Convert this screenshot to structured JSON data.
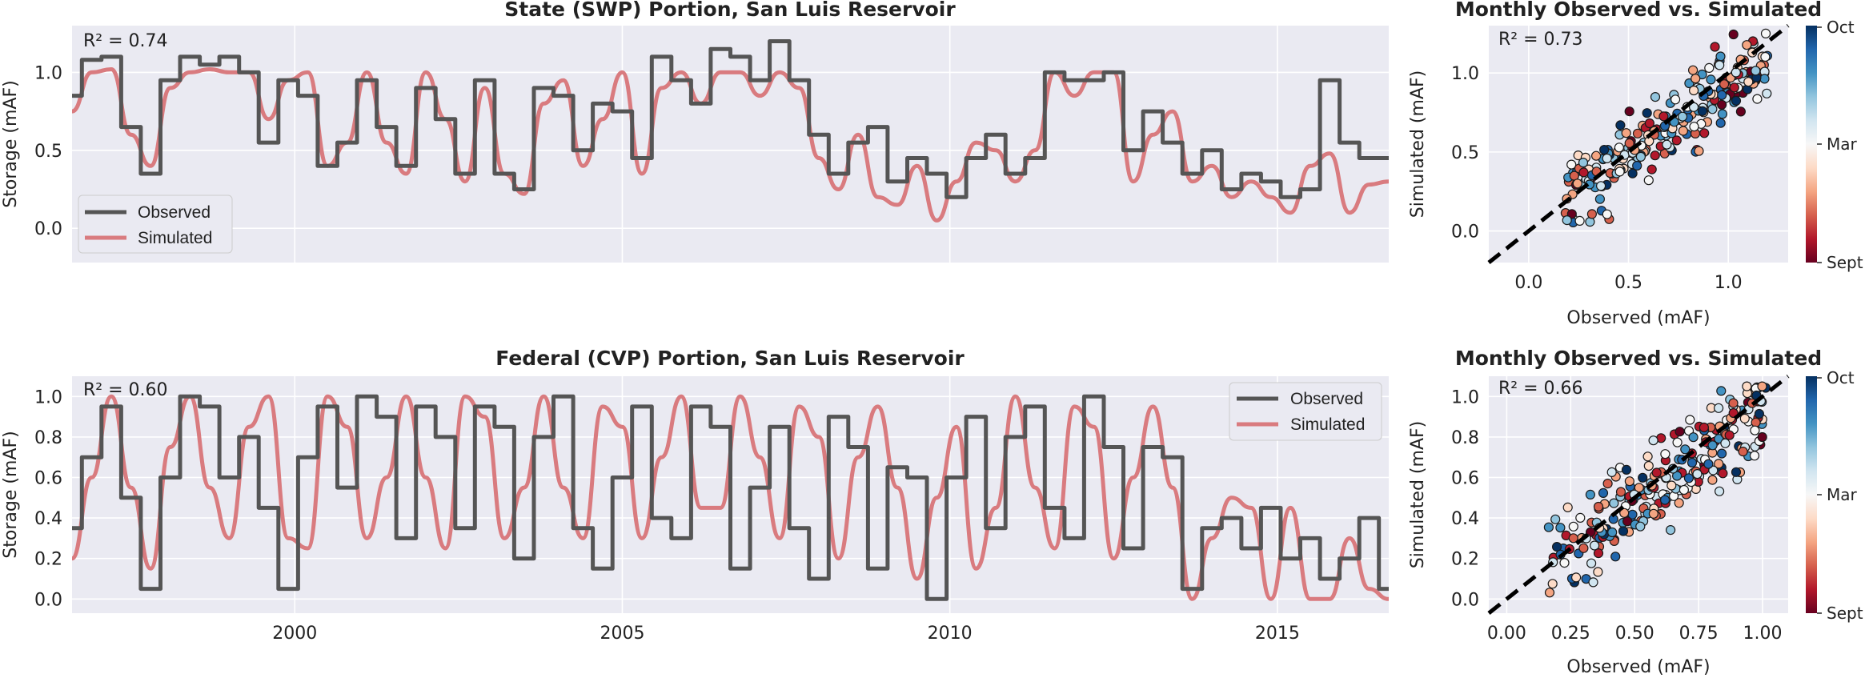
{
  "colors": {
    "background": "#eaeaf2",
    "grid": "#ffffff",
    "observed": "#555555",
    "simulated": "#d97b7f",
    "diagonal": "#000000"
  },
  "legend": {
    "observed": "Observed",
    "simulated": "Simulated"
  },
  "chart_data": [
    {
      "id": "swp_ts",
      "type": "line",
      "title": "State (SWP) Portion, San Luis Reservoir",
      "ylabel": "Storage (mAF)",
      "xlabel": "",
      "annotation": "R² = 0.74",
      "xlim": [
        1996.6,
        2016.7
      ],
      "ylim": [
        -0.22,
        1.3
      ],
      "yticks": [
        0.0,
        0.5,
        1.0
      ],
      "xticks": [
        2000,
        2005,
        2010,
        2015
      ],
      "show_xticklabels": false,
      "legend_position": "lower-left",
      "x": [
        1996.6,
        1996.9,
        1997.2,
        1997.5,
        1997.8,
        1998.1,
        1998.4,
        1998.7,
        1999.0,
        1999.3,
        1999.6,
        1999.9,
        2000.2,
        2000.5,
        2000.8,
        2001.1,
        2001.4,
        2001.7,
        2002.0,
        2002.3,
        2002.6,
        2002.9,
        2003.2,
        2003.5,
        2003.8,
        2004.1,
        2004.4,
        2004.7,
        2005.0,
        2005.3,
        2005.6,
        2005.9,
        2006.2,
        2006.5,
        2006.8,
        2007.1,
        2007.4,
        2007.7,
        2008.0,
        2008.3,
        2008.6,
        2008.9,
        2009.2,
        2009.5,
        2009.8,
        2010.1,
        2010.4,
        2010.7,
        2011.0,
        2011.3,
        2011.6,
        2011.9,
        2012.2,
        2012.5,
        2012.8,
        2013.1,
        2013.4,
        2013.7,
        2014.0,
        2014.3,
        2014.6,
        2014.9,
        2015.2,
        2015.5,
        2015.8,
        2016.1,
        2016.4,
        2016.7
      ],
      "series": [
        {
          "name": "Observed",
          "values": [
            0.85,
            1.08,
            1.1,
            0.65,
            0.35,
            0.95,
            1.1,
            1.05,
            1.1,
            1.0,
            0.55,
            0.95,
            0.85,
            0.4,
            0.55,
            0.95,
            0.65,
            0.4,
            0.9,
            0.7,
            0.35,
            0.95,
            0.35,
            0.25,
            0.9,
            0.85,
            0.5,
            0.8,
            0.75,
            0.45,
            1.1,
            0.95,
            0.8,
            1.15,
            1.1,
            0.95,
            1.2,
            0.95,
            0.6,
            0.35,
            0.55,
            0.65,
            0.3,
            0.45,
            0.35,
            0.2,
            0.45,
            0.6,
            0.35,
            0.45,
            1.0,
            0.95,
            0.95,
            1.0,
            0.5,
            0.75,
            0.55,
            0.35,
            0.5,
            0.25,
            0.35,
            0.3,
            0.2,
            0.25,
            0.95,
            0.55,
            0.45,
            0.45
          ]
        },
        {
          "name": "Simulated",
          "values": [
            0.75,
            1.0,
            1.02,
            0.6,
            0.4,
            0.9,
            1.0,
            1.02,
            1.0,
            1.0,
            0.7,
            0.95,
            1.0,
            0.4,
            0.55,
            1.0,
            0.55,
            0.35,
            1.0,
            0.7,
            0.3,
            0.9,
            0.35,
            0.22,
            0.8,
            0.95,
            0.4,
            0.7,
            1.0,
            0.35,
            0.9,
            1.0,
            0.8,
            1.0,
            1.0,
            0.85,
            1.0,
            0.9,
            0.45,
            0.25,
            0.6,
            0.2,
            0.15,
            0.4,
            0.05,
            0.3,
            0.55,
            0.5,
            0.3,
            0.5,
            1.0,
            0.85,
            1.0,
            1.0,
            0.3,
            0.6,
            0.75,
            0.3,
            0.4,
            0.2,
            0.3,
            0.2,
            0.1,
            0.4,
            0.48,
            0.1,
            0.28,
            0.3
          ]
        }
      ]
    },
    {
      "id": "cvp_ts",
      "type": "line",
      "title": "Federal (CVP) Portion, San Luis Reservoir",
      "ylabel": "Storage (mAF)",
      "xlabel": "",
      "annotation": "R² = 0.60",
      "xlim": [
        1996.6,
        2016.7
      ],
      "ylim": [
        -0.07,
        1.1
      ],
      "yticks": [
        0.0,
        0.2,
        0.4,
        0.6,
        0.8,
        1.0
      ],
      "xticks": [
        2000,
        2005,
        2010,
        2015
      ],
      "show_xticklabels": true,
      "legend_position": "upper-right",
      "x": [
        1996.6,
        1996.9,
        1997.2,
        1997.5,
        1997.8,
        1998.1,
        1998.4,
        1998.7,
        1999.0,
        1999.3,
        1999.6,
        1999.9,
        2000.2,
        2000.5,
        2000.8,
        2001.1,
        2001.4,
        2001.7,
        2002.0,
        2002.3,
        2002.6,
        2002.9,
        2003.2,
        2003.5,
        2003.8,
        2004.1,
        2004.4,
        2004.7,
        2005.0,
        2005.3,
        2005.6,
        2005.9,
        2006.2,
        2006.5,
        2006.8,
        2007.1,
        2007.4,
        2007.7,
        2008.0,
        2008.3,
        2008.6,
        2008.9,
        2009.2,
        2009.5,
        2009.8,
        2010.1,
        2010.4,
        2010.7,
        2011.0,
        2011.3,
        2011.6,
        2011.9,
        2012.2,
        2012.5,
        2012.8,
        2013.1,
        2013.4,
        2013.7,
        2014.0,
        2014.3,
        2014.6,
        2014.9,
        2015.2,
        2015.5,
        2015.8,
        2016.1,
        2016.4,
        2016.7
      ],
      "series": [
        {
          "name": "Observed",
          "values": [
            0.35,
            0.7,
            0.95,
            0.5,
            0.05,
            0.6,
            1.0,
            0.95,
            0.6,
            0.8,
            0.45,
            0.05,
            0.7,
            0.95,
            0.55,
            1.0,
            0.9,
            0.3,
            0.95,
            0.8,
            0.35,
            0.95,
            0.85,
            0.2,
            0.8,
            1.0,
            0.35,
            0.15,
            0.6,
            0.95,
            0.4,
            0.3,
            0.95,
            0.85,
            0.15,
            0.55,
            0.85,
            0.35,
            0.1,
            0.9,
            0.75,
            0.15,
            0.65,
            0.6,
            0.0,
            0.6,
            0.9,
            0.35,
            0.8,
            0.95,
            0.45,
            0.3,
            1.0,
            0.75,
            0.25,
            0.75,
            0.7,
            0.05,
            0.35,
            0.4,
            0.25,
            0.45,
            0.2,
            0.3,
            0.1,
            0.2,
            0.4,
            0.05
          ]
        },
        {
          "name": "Simulated",
          "values": [
            0.2,
            0.6,
            1.0,
            0.55,
            0.15,
            0.75,
            1.0,
            0.55,
            0.3,
            0.85,
            1.0,
            0.3,
            0.25,
            1.0,
            0.85,
            0.3,
            0.6,
            1.0,
            0.6,
            0.25,
            1.0,
            0.9,
            0.3,
            0.55,
            1.0,
            0.55,
            0.3,
            0.95,
            0.85,
            0.3,
            0.7,
            1.0,
            0.45,
            0.45,
            1.0,
            0.7,
            0.3,
            0.95,
            0.8,
            0.2,
            0.7,
            0.95,
            0.55,
            0.1,
            0.5,
            0.85,
            0.15,
            0.45,
            1.0,
            0.55,
            0.25,
            0.95,
            0.85,
            0.2,
            0.6,
            0.95,
            0.55,
            0.0,
            0.3,
            0.5,
            0.45,
            0.0,
            0.45,
            0.0,
            0.0,
            0.3,
            0.05,
            0.0
          ]
        }
      ]
    },
    {
      "id": "swp_scatter",
      "type": "scatter",
      "title": "Monthly Observed vs. Simulated",
      "xlabel": "Observed (mAF)",
      "ylabel": "Simulated (mAF)",
      "annotation": "R² = 0.73",
      "xlim": [
        -0.2,
        1.3
      ],
      "ylim": [
        -0.2,
        1.3
      ],
      "xticks": [
        0.0,
        0.5,
        1.0
      ],
      "yticks": [
        0.0,
        0.5,
        1.0
      ],
      "n_points": 240,
      "seed": 7,
      "intercept": 0.02,
      "slope": 0.92,
      "spread": 0.17
    },
    {
      "id": "cvp_scatter",
      "type": "scatter",
      "title": "Monthly Observed vs. Simulated",
      "xlabel": "Observed (mAF)",
      "ylabel": "Simulated (mAF)",
      "annotation": "R² = 0.66",
      "xlim": [
        -0.07,
        1.1
      ],
      "ylim": [
        -0.07,
        1.1
      ],
      "xticks": [
        0.0,
        0.25,
        0.5,
        0.75,
        1.0
      ],
      "yticks": [
        0.0,
        0.2,
        0.4,
        0.6,
        0.8,
        1.0
      ],
      "n_points": 240,
      "seed": 13,
      "intercept": 0.03,
      "slope": 0.9,
      "spread": 0.15
    }
  ],
  "colorbar": {
    "ticks": [
      "Oct",
      "Mar",
      "Sept"
    ],
    "stops": [
      "#67001f",
      "#b2182b",
      "#d6604d",
      "#f4a582",
      "#fddbc7",
      "#f7f7f7",
      "#d1e5f0",
      "#92c5de",
      "#4393c3",
      "#2166ac",
      "#053061"
    ]
  }
}
